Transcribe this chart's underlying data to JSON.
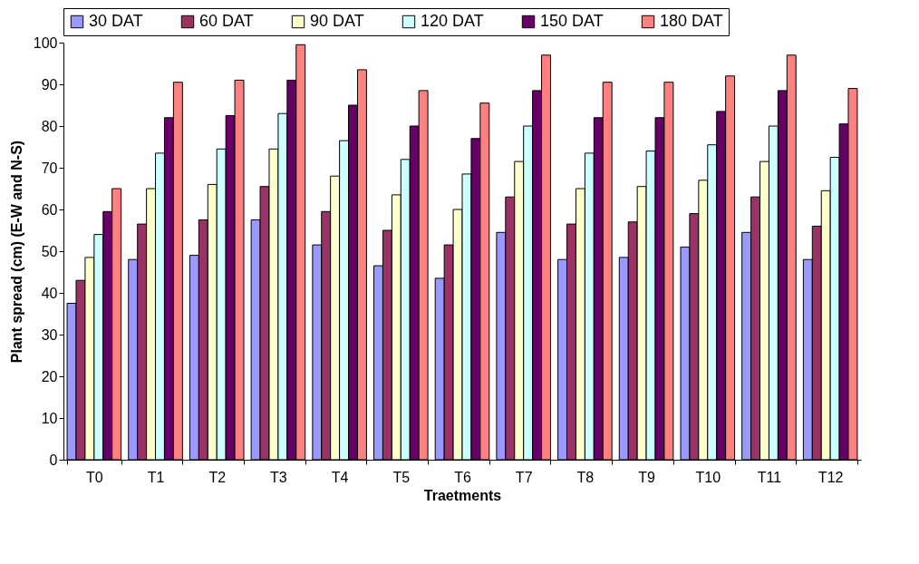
{
  "chart_data": {
    "type": "bar",
    "xlabel": "Traetments",
    "ylabel": "Plant spread (cm) (E-W and N-S)",
    "categories": [
      "T0",
      "T1",
      "T2",
      "T3",
      "T4",
      "T5",
      "T6",
      "T7",
      "T8",
      "T9",
      "T10",
      "T11",
      "T12"
    ],
    "ylim": [
      0,
      100
    ],
    "yticks": [
      0,
      10,
      20,
      30,
      40,
      50,
      60,
      70,
      80,
      90,
      100
    ],
    "grid": false,
    "legend": "top",
    "series": [
      {
        "name": "30 DAT",
        "color": "#9999ff",
        "values": [
          37.5,
          48,
          49,
          57.5,
          51.5,
          46.5,
          43.5,
          54.5,
          48,
          48.5,
          51,
          54.5,
          48
        ]
      },
      {
        "name": "60 DAT",
        "color": "#993366",
        "values": [
          43,
          56.5,
          57.5,
          65.5,
          59.5,
          55,
          51.5,
          63,
          56.5,
          57,
          59,
          63,
          56
        ]
      },
      {
        "name": "90 DAT",
        "color": "#ffffcc",
        "values": [
          48.5,
          65,
          66,
          74.5,
          68,
          63.5,
          60,
          71.5,
          65,
          65.5,
          67,
          71.5,
          64.5
        ]
      },
      {
        "name": "120 DAT",
        "color": "#ccffff",
        "values": [
          54,
          73.5,
          74.5,
          83,
          76.5,
          72,
          68.5,
          80,
          73.5,
          74,
          75.5,
          80,
          72.5
        ]
      },
      {
        "name": "150 DAT",
        "color": "#660066",
        "values": [
          59.5,
          82,
          82.5,
          91,
          85,
          80,
          77,
          88.5,
          82,
          82,
          83.5,
          88.5,
          80.5
        ]
      },
      {
        "name": "180 DAT",
        "color": "#ff8080",
        "values": [
          65,
          90.5,
          91,
          99.5,
          93.5,
          88.5,
          85.5,
          97,
          90.5,
          90.5,
          92,
          97,
          89
        ]
      }
    ]
  }
}
